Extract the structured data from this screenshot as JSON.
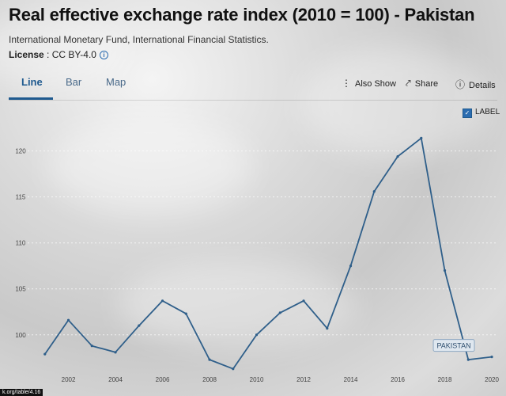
{
  "header": {
    "title": "Real effective exchange rate index (2010 = 100) - Pakistan",
    "source": "International Monetary Fund, International Financial Statistics.",
    "license_label": "License",
    "license_value": " : CC BY-4.0"
  },
  "tabs": [
    {
      "label": "Line",
      "active": true
    },
    {
      "label": "Bar",
      "active": false
    },
    {
      "label": "Map",
      "active": false
    }
  ],
  "actions": {
    "also_show": "Also Show",
    "share": "Share",
    "details": "Details"
  },
  "label_toggle": {
    "label": "LABEL",
    "checked": true
  },
  "footer_url": "k.org/table/4.16",
  "chart_data": {
    "type": "line",
    "x": [
      2001,
      2002,
      2003,
      2004,
      2005,
      2006,
      2007,
      2008,
      2009,
      2010,
      2011,
      2012,
      2013,
      2014,
      2015,
      2016,
      2017,
      2018,
      2019,
      2020
    ],
    "series": [
      {
        "name": "PAKISTAN",
        "values": [
          97.9,
          101.6,
          98.8,
          98.1,
          101.0,
          103.7,
          102.3,
          97.3,
          96.3,
          100.0,
          102.4,
          103.7,
          100.7,
          107.5,
          115.6,
          119.4,
          121.4,
          107.0,
          97.3,
          97.6
        ]
      }
    ],
    "xticks": [
      2002,
      2004,
      2006,
      2008,
      2010,
      2012,
      2014,
      2016,
      2018,
      2020
    ],
    "yticks": [
      100,
      105,
      110,
      115,
      120
    ],
    "xlim": [
      2000.1,
      2020.2
    ],
    "ylim": [
      95.5,
      123.5
    ],
    "line_color": "#2f5f8a",
    "grid": true,
    "end_label": "PAKISTAN"
  }
}
